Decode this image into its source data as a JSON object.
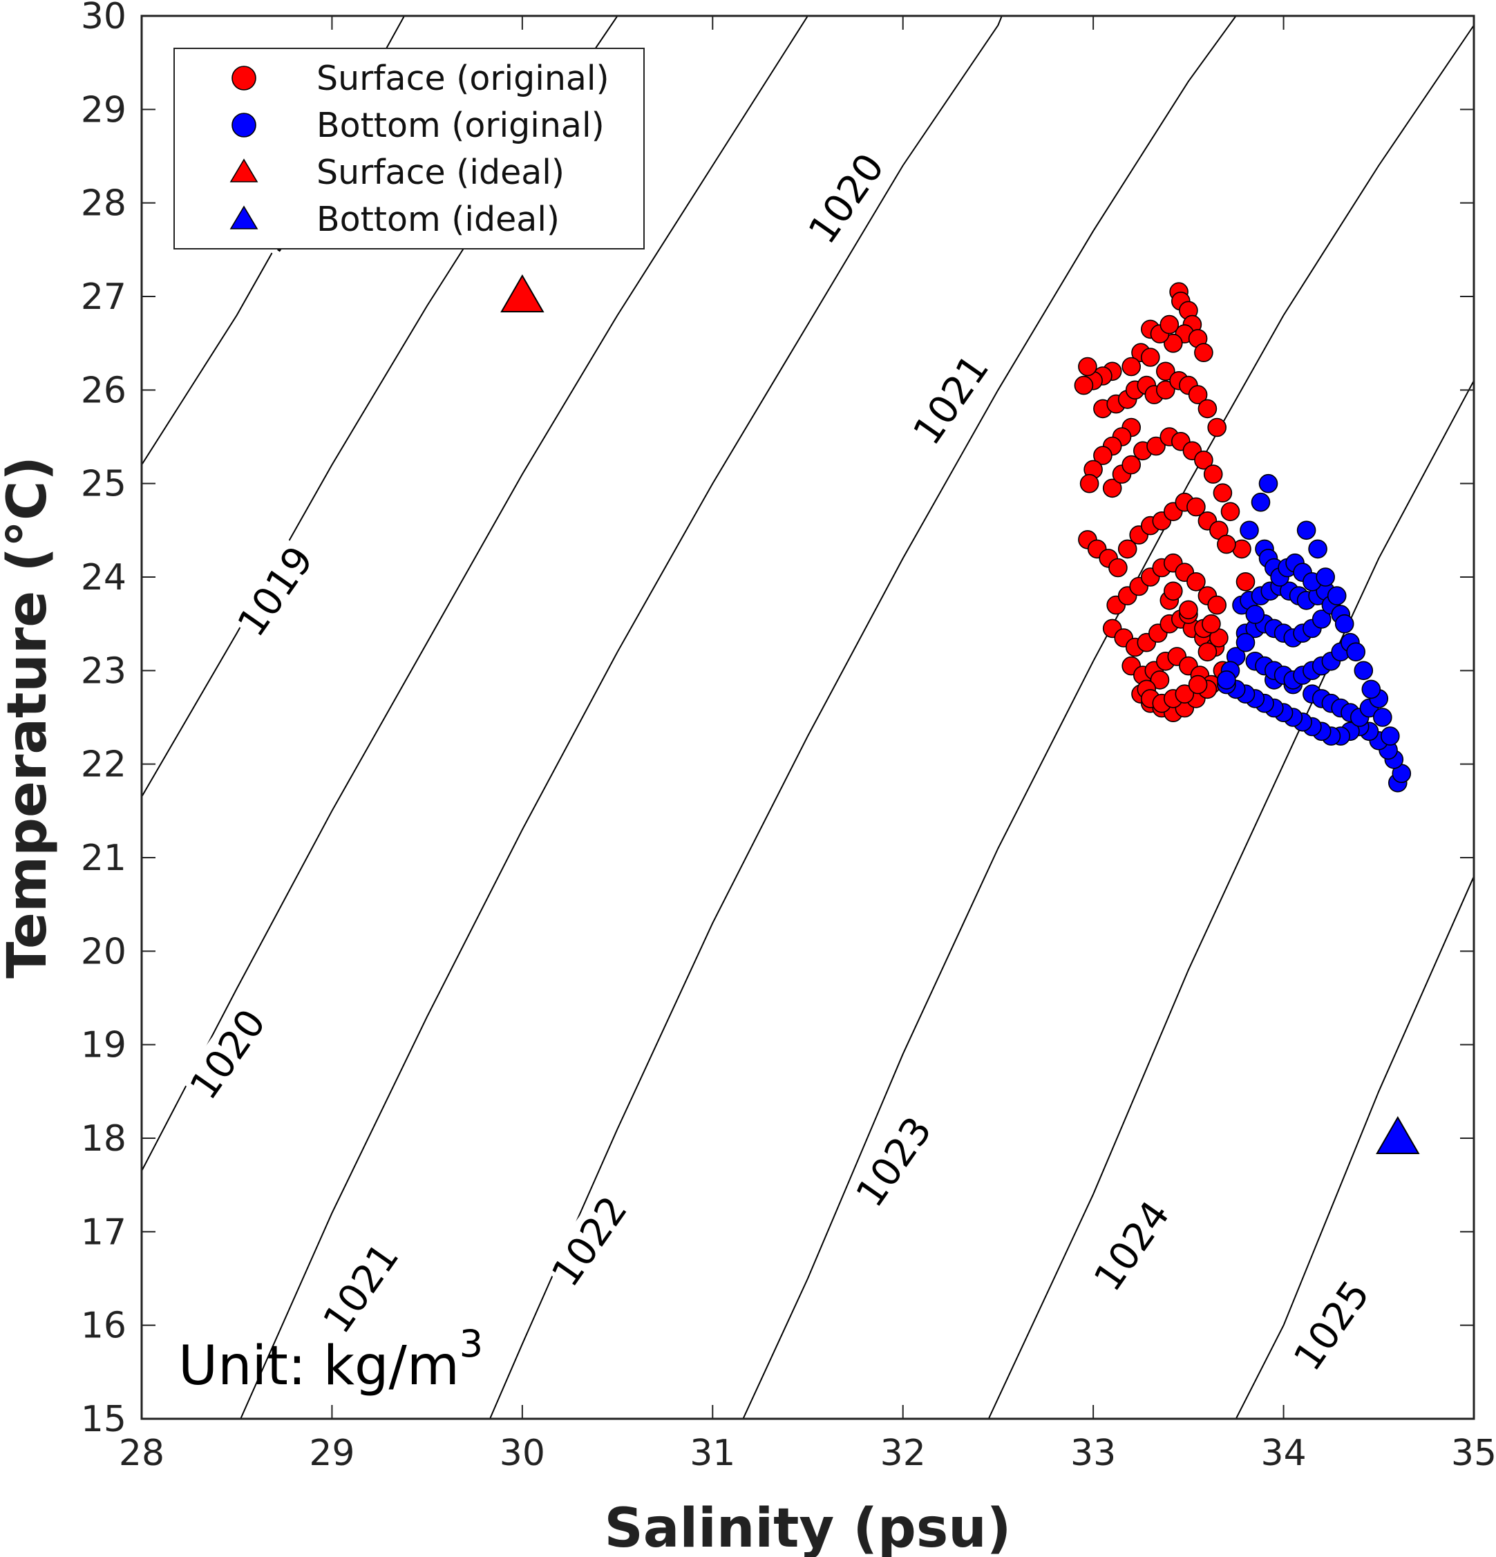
{
  "chart_data": {
    "type": "scatter",
    "title": "",
    "xlabel": "Salinity (psu)",
    "ylabel": "Temperature (°C)",
    "xlim": [
      28,
      35
    ],
    "ylim": [
      15,
      30
    ],
    "x_ticks": [
      28,
      29,
      30,
      31,
      32,
      33,
      34,
      35
    ],
    "y_ticks": [
      15,
      16,
      17,
      18,
      19,
      20,
      21,
      22,
      23,
      24,
      25,
      26,
      27,
      28,
      29,
      30
    ],
    "grid": false,
    "legend_position": "top-left",
    "annotation": {
      "prefix": "Unit: kg/m",
      "superscript": "3"
    },
    "density_contours": {
      "line_color": "#000000",
      "levels": [
        {
          "label": "1018",
          "points": [
            [
              28.0,
              25.2
            ],
            [
              28.5,
              26.8
            ],
            [
              29.0,
              28.6
            ],
            [
              29.38,
              30.0
            ]
          ],
          "label_at": [
            28.8,
            27.95
          ]
        },
        {
          "label": "1019",
          "points": [
            [
              28.0,
              21.65
            ],
            [
              28.5,
              23.4
            ],
            [
              29.0,
              25.2
            ],
            [
              29.5,
              26.9
            ],
            [
              30.0,
              28.5
            ],
            [
              30.5,
              30.0
            ]
          ],
          "label_at": [
            28.7,
            23.85
          ]
        },
        {
          "label": "1020",
          "points": [
            [
              28.0,
              17.65
            ],
            [
              28.5,
              19.6
            ],
            [
              29.0,
              21.5
            ],
            [
              29.5,
              23.3
            ],
            [
              30.0,
              25.1
            ],
            [
              30.5,
              26.8
            ],
            [
              31.0,
              28.4
            ],
            [
              31.5,
              30.0
            ]
          ],
          "label_at": [
            28.45,
            18.9
          ]
        },
        {
          "label": "1020",
          "points": [],
          "label_at": [
            31.7,
            28.05
          ]
        },
        {
          "label": "1021",
          "points": [
            [
              28.52,
              15.0
            ],
            [
              29.0,
              17.2
            ],
            [
              29.5,
              19.3
            ],
            [
              30.0,
              21.3
            ],
            [
              30.5,
              23.2
            ],
            [
              31.0,
              25.0
            ],
            [
              31.5,
              26.7
            ],
            [
              32.0,
              28.4
            ],
            [
              32.5,
              29.9
            ],
            [
              32.52,
              30.0
            ]
          ],
          "label_at": [
            29.15,
            16.4
          ]
        },
        {
          "label": "1021",
          "points": [],
          "label_at": [
            32.25,
            25.9
          ]
        },
        {
          "label": "1022",
          "points": [
            [
              29.83,
              15.0
            ],
            [
              30.0,
              15.8
            ],
            [
              30.5,
              18.1
            ],
            [
              31.0,
              20.3
            ],
            [
              31.5,
              22.3
            ],
            [
              32.0,
              24.2
            ],
            [
              32.5,
              26.0
            ],
            [
              33.0,
              27.7
            ],
            [
              33.5,
              29.3
            ],
            [
              33.75,
              30.0
            ]
          ],
          "label_at": [
            30.35,
            16.9
          ]
        },
        {
          "label": "1023",
          "points": [
            [
              31.16,
              15.0
            ],
            [
              31.5,
              16.5
            ],
            [
              32.0,
              18.9
            ],
            [
              32.5,
              21.1
            ],
            [
              33.0,
              23.1
            ],
            [
              33.5,
              25.0
            ],
            [
              34.0,
              26.8
            ],
            [
              34.5,
              28.4
            ],
            [
              35.0,
              29.9
            ]
          ],
          "label_at": [
            31.95,
            17.75
          ]
        },
        {
          "label": "1024",
          "points": [
            [
              32.45,
              15.0
            ],
            [
              33.0,
              17.4
            ],
            [
              33.5,
              19.8
            ],
            [
              34.0,
              22.0
            ],
            [
              34.5,
              24.2
            ],
            [
              35.0,
              26.1
            ]
          ],
          "label_at": [
            33.2,
            16.85
          ]
        },
        {
          "label": "1025",
          "points": [
            [
              33.75,
              15.0
            ],
            [
              34.0,
              16.0
            ],
            [
              34.5,
              18.5
            ],
            [
              35.0,
              20.8
            ]
          ],
          "label_at": [
            34.25,
            16.0
          ]
        }
      ]
    },
    "series": [
      {
        "name": "Surface (original)",
        "marker": "circle",
        "color": "#ff0000",
        "x": [
          33.45,
          33.46,
          33.5,
          33.52,
          33.48,
          33.42,
          33.25,
          33.3,
          33.35,
          33.4,
          33.55,
          33.58,
          33.3,
          33.38,
          33.2,
          33.1,
          33.05,
          33.0,
          32.97,
          32.95,
          33.05,
          33.12,
          33.18,
          33.22,
          33.28,
          33.32,
          33.38,
          33.45,
          33.5,
          33.55,
          33.6,
          33.65,
          33.2,
          33.15,
          33.1,
          33.05,
          33.0,
          32.98,
          33.1,
          33.15,
          33.2,
          33.26,
          33.33,
          33.4,
          33.46,
          33.52,
          33.58,
          33.63,
          33.68,
          33.72,
          33.78,
          33.8,
          32.97,
          33.02,
          33.08,
          33.13,
          33.18,
          33.24,
          33.3,
          33.36,
          33.42,
          33.48,
          33.54,
          33.6,
          33.66,
          33.7,
          33.12,
          33.18,
          33.24,
          33.3,
          33.36,
          33.42,
          33.48,
          33.54,
          33.6,
          33.65,
          33.1,
          33.16,
          33.22,
          33.28,
          33.34,
          33.4,
          33.46,
          33.52,
          33.58,
          33.64,
          33.2,
          33.26,
          33.32,
          33.38,
          33.44,
          33.5,
          33.56,
          33.62,
          33.25,
          33.3,
          33.36,
          33.42,
          33.48,
          33.54,
          33.6,
          33.68,
          33.66,
          33.58,
          33.5,
          33.4,
          33.35,
          33.28,
          33.3,
          33.36,
          33.42,
          33.48,
          33.55,
          33.6,
          33.62,
          33.5,
          33.42
        ],
        "y": [
          27.05,
          26.95,
          26.85,
          26.7,
          26.6,
          26.5,
          26.4,
          26.65,
          26.6,
          26.7,
          26.55,
          26.4,
          26.35,
          26.2,
          26.25,
          26.2,
          26.15,
          26.1,
          26.25,
          26.05,
          25.8,
          25.85,
          25.9,
          26.0,
          26.05,
          25.95,
          26.0,
          26.1,
          26.05,
          25.95,
          25.8,
          25.6,
          25.6,
          25.5,
          25.4,
          25.3,
          25.15,
          25.0,
          24.95,
          25.1,
          25.2,
          25.35,
          25.4,
          25.5,
          25.45,
          25.35,
          25.25,
          25.1,
          24.9,
          24.7,
          24.3,
          23.95,
          24.4,
          24.3,
          24.2,
          24.1,
          24.3,
          24.45,
          24.55,
          24.6,
          24.7,
          24.8,
          24.75,
          24.6,
          24.5,
          24.35,
          23.7,
          23.8,
          23.9,
          24.0,
          24.1,
          24.15,
          24.05,
          23.95,
          23.8,
          23.7,
          23.45,
          23.35,
          23.25,
          23.3,
          23.4,
          23.5,
          23.55,
          23.45,
          23.35,
          23.25,
          23.05,
          22.95,
          23.0,
          23.1,
          23.15,
          23.05,
          22.95,
          22.85,
          22.75,
          22.65,
          22.6,
          22.55,
          22.6,
          22.7,
          22.8,
          23.0,
          23.35,
          23.45,
          23.6,
          23.75,
          22.9,
          22.8,
          22.7,
          22.65,
          22.7,
          22.75,
          22.85,
          23.2,
          23.5,
          23.65,
          23.85
        ]
      },
      {
        "name": "Bottom (original)",
        "marker": "circle",
        "color": "#0000ff",
        "x": [
          34.6,
          34.62,
          34.58,
          34.55,
          34.5,
          34.45,
          34.4,
          34.35,
          34.3,
          34.25,
          34.2,
          34.15,
          34.1,
          34.05,
          34.0,
          33.95,
          33.9,
          33.85,
          33.8,
          33.75,
          33.7,
          33.95,
          34.05,
          34.15,
          34.2,
          34.25,
          34.3,
          34.35,
          34.4,
          34.45,
          34.5,
          33.85,
          33.9,
          33.95,
          34.0,
          34.05,
          34.1,
          34.15,
          34.2,
          34.25,
          34.3,
          34.35,
          33.8,
          33.85,
          33.9,
          33.95,
          34.0,
          34.05,
          34.1,
          34.15,
          34.2,
          33.78,
          33.82,
          33.88,
          33.93,
          33.98,
          34.03,
          34.08,
          34.12,
          34.18,
          34.22,
          33.9,
          33.92,
          33.95,
          33.98,
          34.02,
          34.06,
          34.1,
          34.15,
          34.25,
          34.3,
          33.75,
          33.72,
          33.7,
          33.8,
          33.85,
          33.92,
          33.88,
          33.82,
          34.12,
          34.18,
          34.22,
          34.28,
          34.32,
          34.38,
          34.42,
          34.46,
          34.52,
          34.56
        ],
        "y": [
          21.8,
          21.9,
          22.05,
          22.15,
          22.25,
          22.35,
          22.4,
          22.35,
          22.3,
          22.3,
          22.35,
          22.4,
          22.45,
          22.5,
          22.55,
          22.6,
          22.65,
          22.7,
          22.75,
          22.8,
          22.85,
          22.9,
          22.85,
          22.75,
          22.7,
          22.65,
          22.6,
          22.55,
          22.5,
          22.6,
          22.7,
          23.1,
          23.05,
          23.0,
          22.95,
          22.9,
          22.95,
          23.0,
          23.05,
          23.1,
          23.2,
          23.3,
          23.4,
          23.45,
          23.5,
          23.45,
          23.4,
          23.35,
          23.4,
          23.45,
          23.55,
          23.7,
          23.75,
          23.8,
          23.85,
          23.9,
          23.85,
          23.8,
          23.75,
          23.8,
          23.85,
          24.3,
          24.2,
          24.1,
          24.0,
          24.1,
          24.15,
          24.05,
          23.95,
          23.7,
          23.6,
          23.15,
          23.0,
          22.9,
          23.3,
          23.6,
          25.0,
          24.8,
          24.5,
          24.5,
          24.3,
          24.0,
          23.8,
          23.5,
          23.2,
          23.0,
          22.8,
          22.5,
          22.3
        ]
      },
      {
        "name": "Surface (ideal)",
        "marker": "triangle",
        "color": "#ff0000",
        "x": [
          30.0
        ],
        "y": [
          27.0
        ]
      },
      {
        "name": "Bottom (ideal)",
        "marker": "triangle",
        "color": "#0000ff",
        "x": [
          34.6
        ],
        "y": [
          18.0
        ]
      }
    ]
  }
}
